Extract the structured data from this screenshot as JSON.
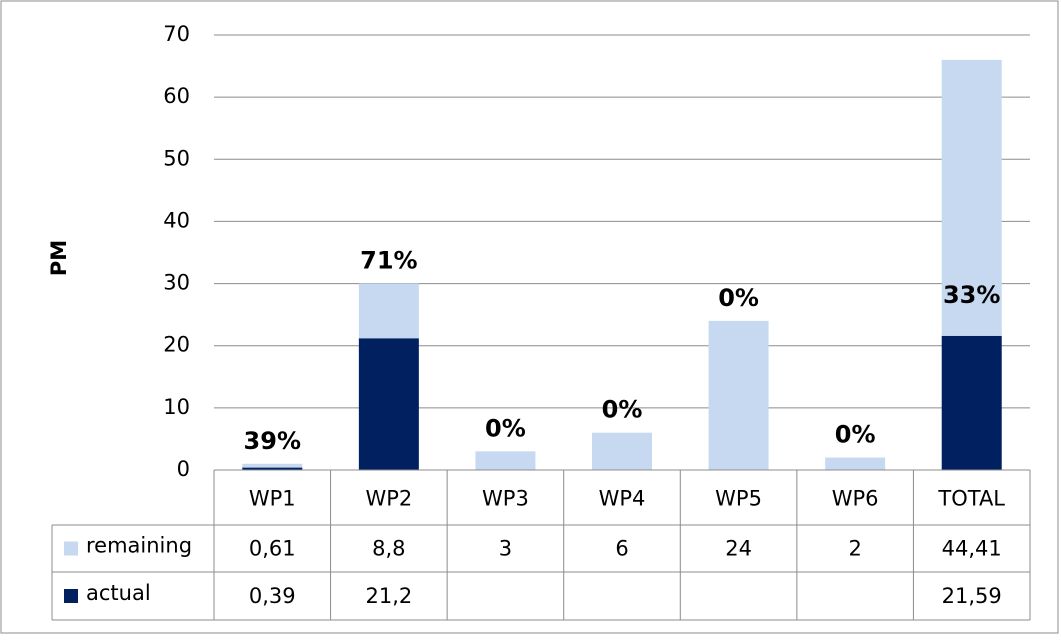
{
  "chart_data": {
    "type": "stacked_bar",
    "y_label": "PM",
    "categories": [
      "WP1",
      "WP2",
      "WP3",
      "WP4",
      "WP5",
      "WP6",
      "TOTAL"
    ],
    "series": [
      {
        "name": "actual",
        "color": "#002060",
        "values": [
          0.39,
          21.2,
          null,
          null,
          null,
          null,
          21.59
        ],
        "value_labels": [
          "0,39",
          "21,2",
          null,
          null,
          null,
          null,
          "21,59"
        ]
      },
      {
        "name": "remaining",
        "color": "#c6d9f1",
        "values": [
          0.61,
          8.8,
          3,
          6,
          24,
          2,
          44.41
        ],
        "value_labels": [
          "0,61",
          "8,8",
          "3",
          "6",
          "24",
          "2",
          "44,41"
        ]
      }
    ],
    "annotations": [
      "39%",
      "71%",
      "0%",
      "0%",
      "0%",
      "0%",
      "33%"
    ],
    "ylim": [
      0,
      70
    ],
    "yticks": [
      0,
      10,
      20,
      30,
      40,
      50,
      60,
      70
    ],
    "grid": true
  }
}
